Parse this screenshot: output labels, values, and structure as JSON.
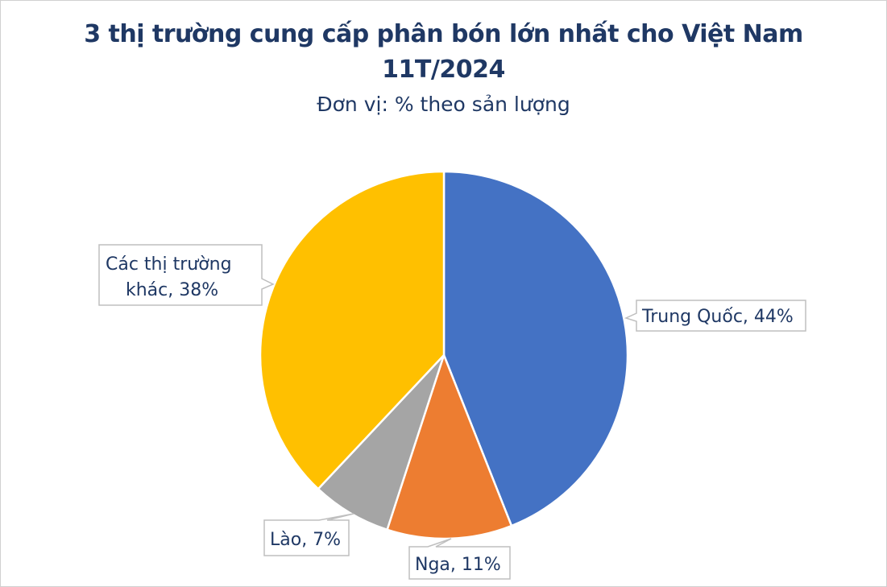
{
  "chart_data": {
    "type": "pie",
    "title_line1": "3 thị trường cung cấp phân bón lớn nhất cho Việt Nam",
    "title_line2": "11T/2024",
    "subtitle": "Đơn vị: % theo sản lượng",
    "slices": [
      {
        "name": "Trung Quốc",
        "value": 44,
        "label": "Trung Quốc, 44%",
        "color": "#4472C4"
      },
      {
        "name": "Nga",
        "value": 11,
        "label": "Nga, 11%",
        "color": "#ED7D31"
      },
      {
        "name": "Lào",
        "value": 7,
        "label": "Lào, 7%",
        "color": "#A5A5A5"
      },
      {
        "name": "Các thị trường khác",
        "value": 38,
        "label_lines": [
          "Các thị trường",
          "khác, 38%"
        ],
        "color": "#FFC000"
      }
    ],
    "legend": "none"
  }
}
